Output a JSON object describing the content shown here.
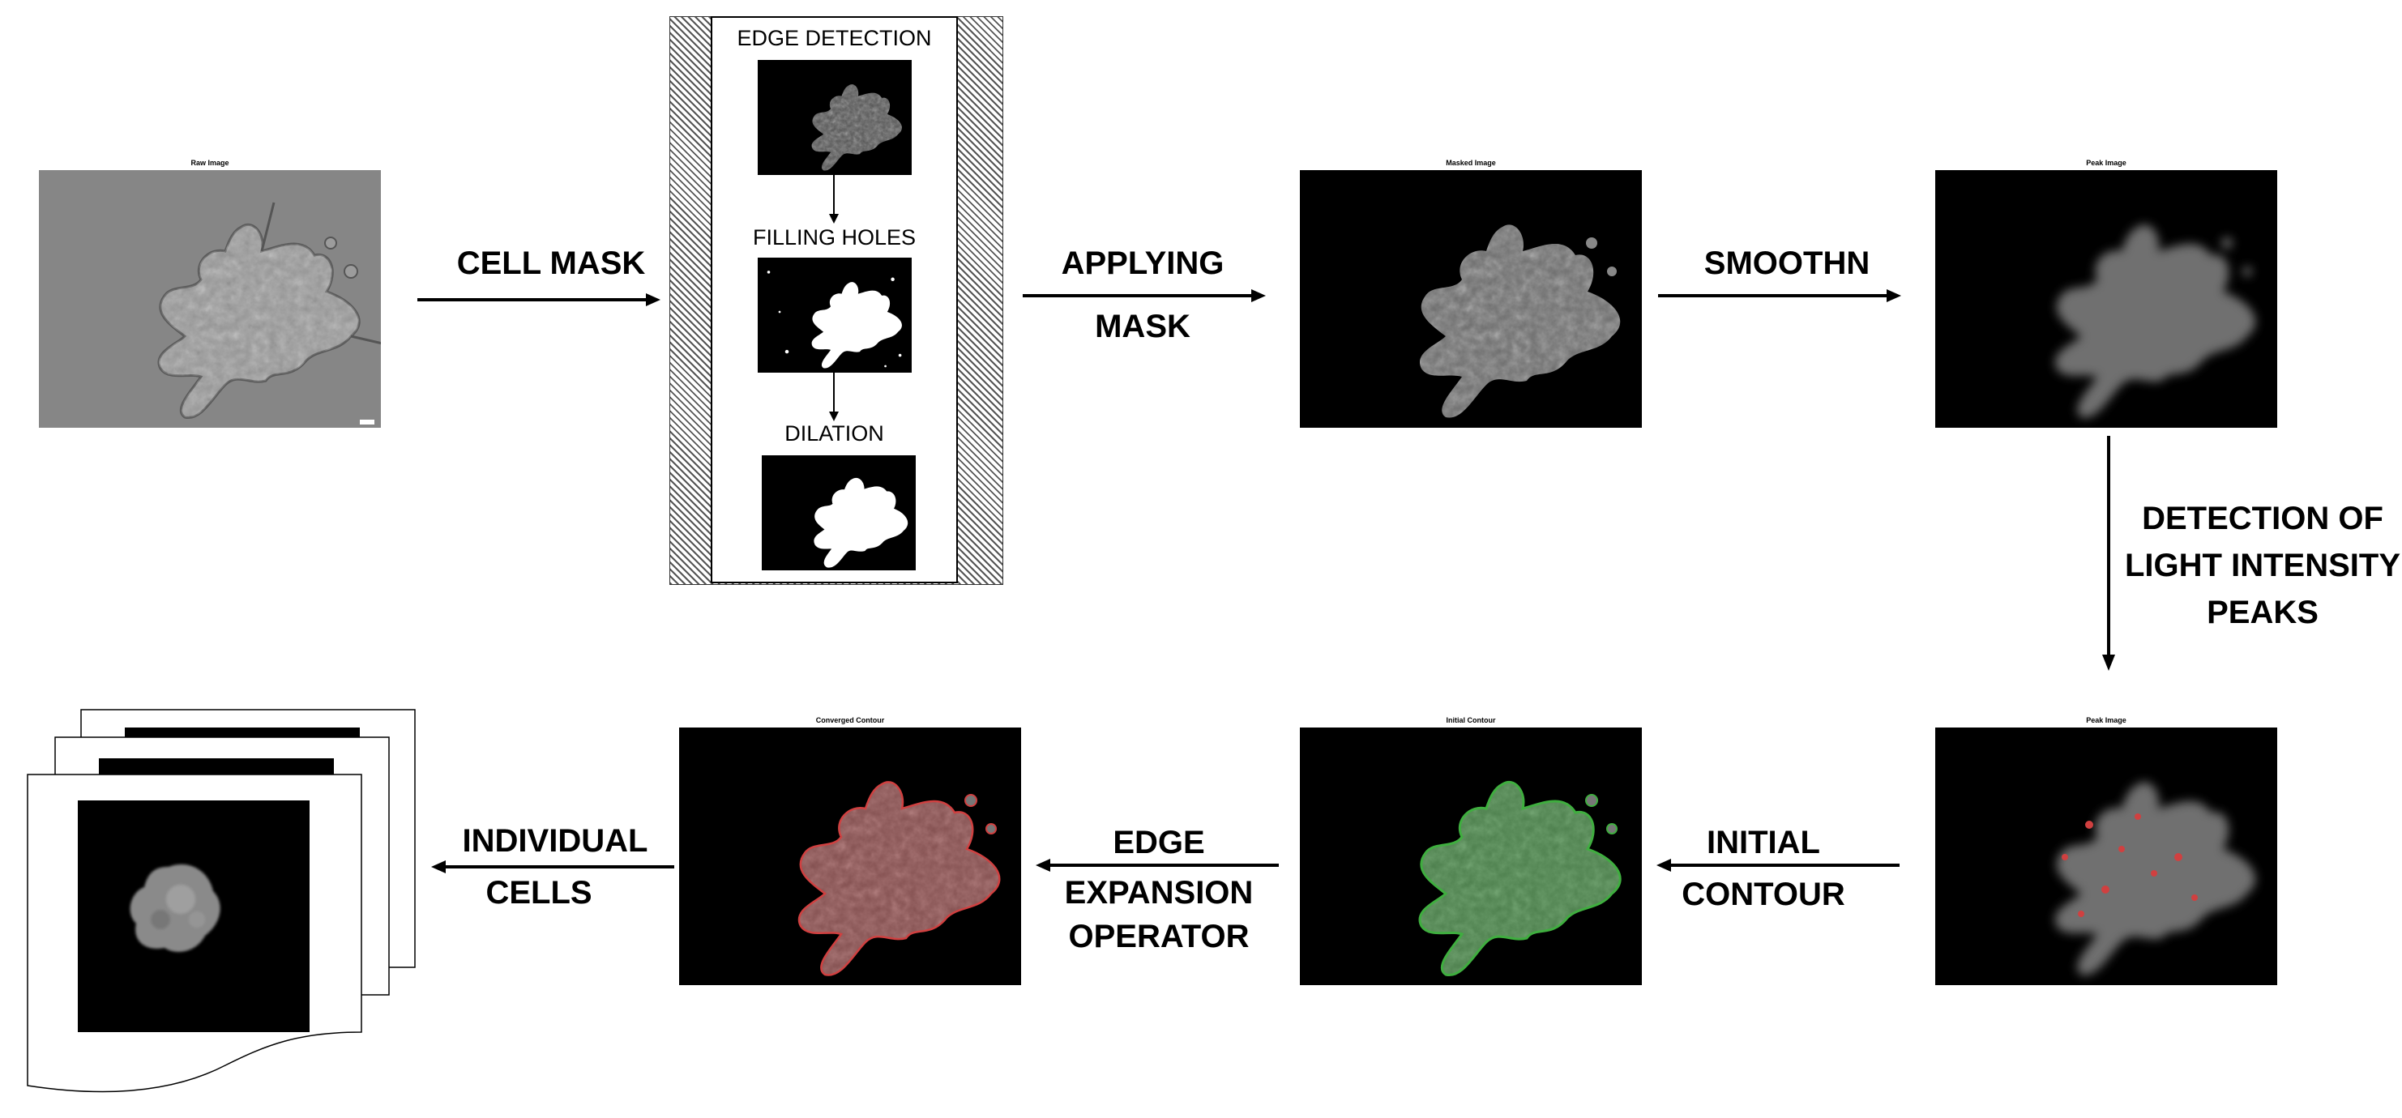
{
  "panels": {
    "raw": "Raw Image",
    "masked": "Masked Image",
    "peak1": "Peak Image",
    "peak2": "Peak Image",
    "initial": "Initial Contour",
    "converged": "Converged Contour"
  },
  "steps": {
    "cell_mask": "CELL MASK",
    "applying_1": "APPLYING",
    "applying_2": "MASK",
    "smoothn": "SMOOTHN",
    "detection_1": "DETECTION  OF",
    "detection_2": "LIGHT INTENSITY",
    "detection_3": "PEAKS",
    "initial_1": "INITIAL",
    "initial_2": "CONTOUR",
    "edge_1": "EDGE",
    "edge_2": "EXPANSION",
    "edge_3": "OPERATOR",
    "individual_1": "INDIVIDUAL",
    "individual_2": "CELLS"
  },
  "mask_steps": {
    "edge_detection": "EDGE DETECTION",
    "filling_holes": "FILLING HOLES",
    "dilation": "DILATION"
  },
  "colors": {
    "background": "#ffffff",
    "image_black": "#000000",
    "raw_gray": "#8a8a8a",
    "contour_red": "#d04040",
    "contour_green": "#3fae3f"
  }
}
